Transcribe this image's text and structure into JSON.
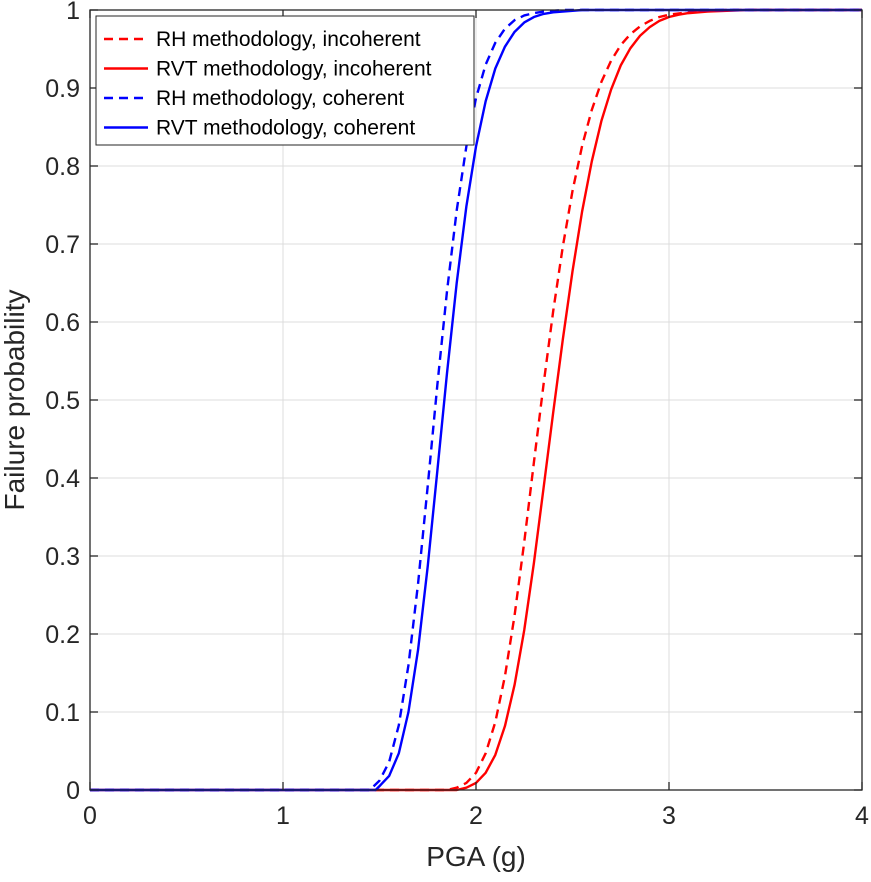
{
  "chart_data": {
    "type": "line",
    "title": "",
    "xlabel": "PGA (g)",
    "ylabel": "Failure probability",
    "xlim": [
      0,
      4
    ],
    "ylim": [
      0,
      1
    ],
    "xticks": [
      0,
      1,
      2,
      3,
      4
    ],
    "xtick_labels": [
      "0",
      "1",
      "2",
      "3",
      "4"
    ],
    "yticks": [
      0,
      0.1,
      0.2,
      0.3,
      0.4,
      0.5,
      0.6,
      0.7,
      0.8,
      0.9,
      1
    ],
    "ytick_labels": [
      "0",
      "0.1",
      "0.2",
      "0.3",
      "0.4",
      "0.5",
      "0.6",
      "0.7",
      "0.8",
      "0.9",
      "1"
    ],
    "grid": true,
    "legend_position": "top-left",
    "series": [
      {
        "name": "RH methodology, incoherent",
        "color": "#ff0000",
        "style": "dashed",
        "x": [
          0,
          1.85,
          1.9,
          1.95,
          2.0,
          2.05,
          2.1,
          2.15,
          2.2,
          2.25,
          2.3,
          2.35,
          2.4,
          2.45,
          2.5,
          2.55,
          2.6,
          2.65,
          2.7,
          2.75,
          2.8,
          2.85,
          2.9,
          2.95,
          3.0,
          3.1,
          3.2,
          3.3,
          3.4,
          3.5,
          4.0
        ],
        "y": [
          0,
          0.0,
          0.003,
          0.009,
          0.022,
          0.047,
          0.087,
          0.146,
          0.224,
          0.318,
          0.42,
          0.52,
          0.614,
          0.697,
          0.768,
          0.826,
          0.872,
          0.908,
          0.935,
          0.955,
          0.969,
          0.979,
          0.986,
          0.991,
          0.994,
          0.997,
          0.999,
          1.0,
          1.0,
          1.0,
          1.0
        ]
      },
      {
        "name": "RVT methodology, incoherent",
        "color": "#ff0000",
        "style": "solid",
        "x": [
          0,
          1.9,
          1.95,
          2.0,
          2.05,
          2.1,
          2.15,
          2.2,
          2.25,
          2.3,
          2.35,
          2.4,
          2.45,
          2.5,
          2.55,
          2.6,
          2.65,
          2.7,
          2.75,
          2.8,
          2.85,
          2.9,
          2.95,
          3.0,
          3.05,
          3.1,
          3.2,
          3.3,
          3.4,
          3.5,
          3.6,
          4.0
        ],
        "y": [
          0,
          0.0,
          0.003,
          0.009,
          0.022,
          0.045,
          0.082,
          0.135,
          0.205,
          0.291,
          0.387,
          0.484,
          0.578,
          0.665,
          0.742,
          0.806,
          0.858,
          0.898,
          0.929,
          0.951,
          0.967,
          0.978,
          0.986,
          0.991,
          0.994,
          0.996,
          0.998,
          0.999,
          1.0,
          1.0,
          1.0,
          1.0
        ]
      },
      {
        "name": "RH methodology, coherent",
        "color": "#0000ff",
        "style": "dashed",
        "x": [
          0,
          1.45,
          1.5,
          1.55,
          1.6,
          1.65,
          1.7,
          1.75,
          1.8,
          1.85,
          1.9,
          1.95,
          2.0,
          2.05,
          2.1,
          2.15,
          2.2,
          2.25,
          2.3,
          2.35,
          2.4,
          2.45,
          2.5,
          2.6,
          2.7,
          2.8,
          4.0
        ],
        "y": [
          0,
          0.0,
          0.012,
          0.036,
          0.083,
          0.16,
          0.265,
          0.39,
          0.52,
          0.64,
          0.743,
          0.825,
          0.887,
          0.93,
          0.958,
          0.976,
          0.987,
          0.993,
          0.996,
          0.998,
          0.999,
          1.0,
          1.0,
          1.0,
          1.0,
          1.0,
          1.0
        ]
      },
      {
        "name": "RVT methodology, coherent",
        "color": "#0000ff",
        "style": "solid",
        "x": [
          0,
          1.48,
          1.5,
          1.55,
          1.6,
          1.65,
          1.7,
          1.75,
          1.8,
          1.85,
          1.9,
          1.95,
          2.0,
          2.05,
          2.1,
          2.15,
          2.2,
          2.25,
          2.3,
          2.35,
          2.4,
          2.45,
          2.5,
          2.55,
          2.6,
          2.7,
          2.8,
          4.0
        ],
        "y": [
          0,
          0.0,
          0.005,
          0.018,
          0.047,
          0.1,
          0.18,
          0.287,
          0.41,
          0.535,
          0.65,
          0.748,
          0.825,
          0.883,
          0.925,
          0.953,
          0.972,
          0.984,
          0.991,
          0.995,
          0.997,
          0.998,
          0.999,
          1.0,
          1.0,
          1.0,
          1.0,
          1.0
        ]
      }
    ]
  }
}
